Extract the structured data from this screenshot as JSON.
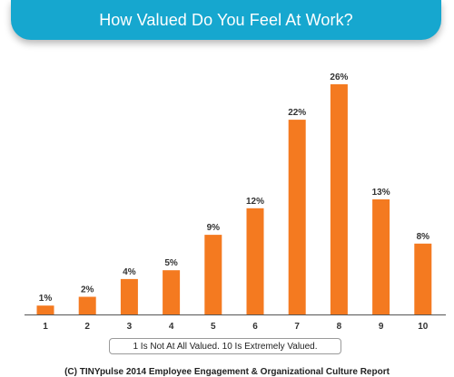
{
  "title": "How Valued Do You Feel At Work?",
  "note": "1 Is Not At All Valued. 10 Is Extremely Valued.",
  "footer": "(C) TINYpulse 2014 Employee Engagement & Organizational Culture Report",
  "colors": {
    "banner": "#16a7cf",
    "bar": "#f47a20",
    "axis": "#555555"
  },
  "chart_data": {
    "type": "bar",
    "categories": [
      "1",
      "2",
      "3",
      "4",
      "5",
      "6",
      "7",
      "8",
      "9",
      "10"
    ],
    "values": [
      1,
      2,
      4,
      5,
      9,
      12,
      22,
      26,
      13,
      8
    ],
    "value_labels": [
      "1%",
      "2%",
      "4%",
      "5%",
      "9%",
      "12%",
      "22%",
      "26%",
      "13%",
      "8%"
    ],
    "title": "How Valued Do You Feel At Work?",
    "xlabel": "",
    "ylabel": "",
    "ylim": [
      0,
      26
    ],
    "grid": false,
    "legend": "none"
  }
}
